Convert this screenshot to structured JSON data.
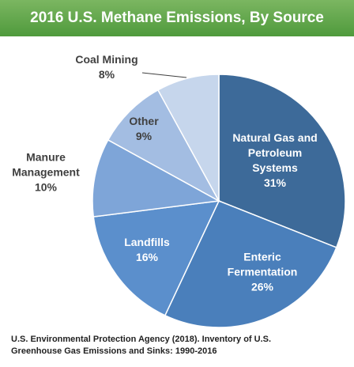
{
  "chart_data": {
    "type": "pie",
    "title": "2016 U.S. Methane Emissions, By Source",
    "categories": [
      "Natural Gas and Petroleum Systems",
      "Enteric Fermentation",
      "Landfills",
      "Manure Management",
      "Other",
      "Coal Mining"
    ],
    "values": [
      31,
      26,
      16,
      10,
      9,
      8
    ],
    "value_labels": [
      "31%",
      "26%",
      "16%",
      "10%",
      "9%",
      "8%"
    ],
    "colors": [
      "#3d6a99",
      "#4a7fbb",
      "#5b8fcc",
      "#7ea5d8",
      "#a3bde2",
      "#c6d6ec"
    ],
    "source": "U.S. Environmental Protection Agency (2018). Inventory of U.S. Greenhouse Gas Emissions and Sinks: 1990-2016"
  }
}
